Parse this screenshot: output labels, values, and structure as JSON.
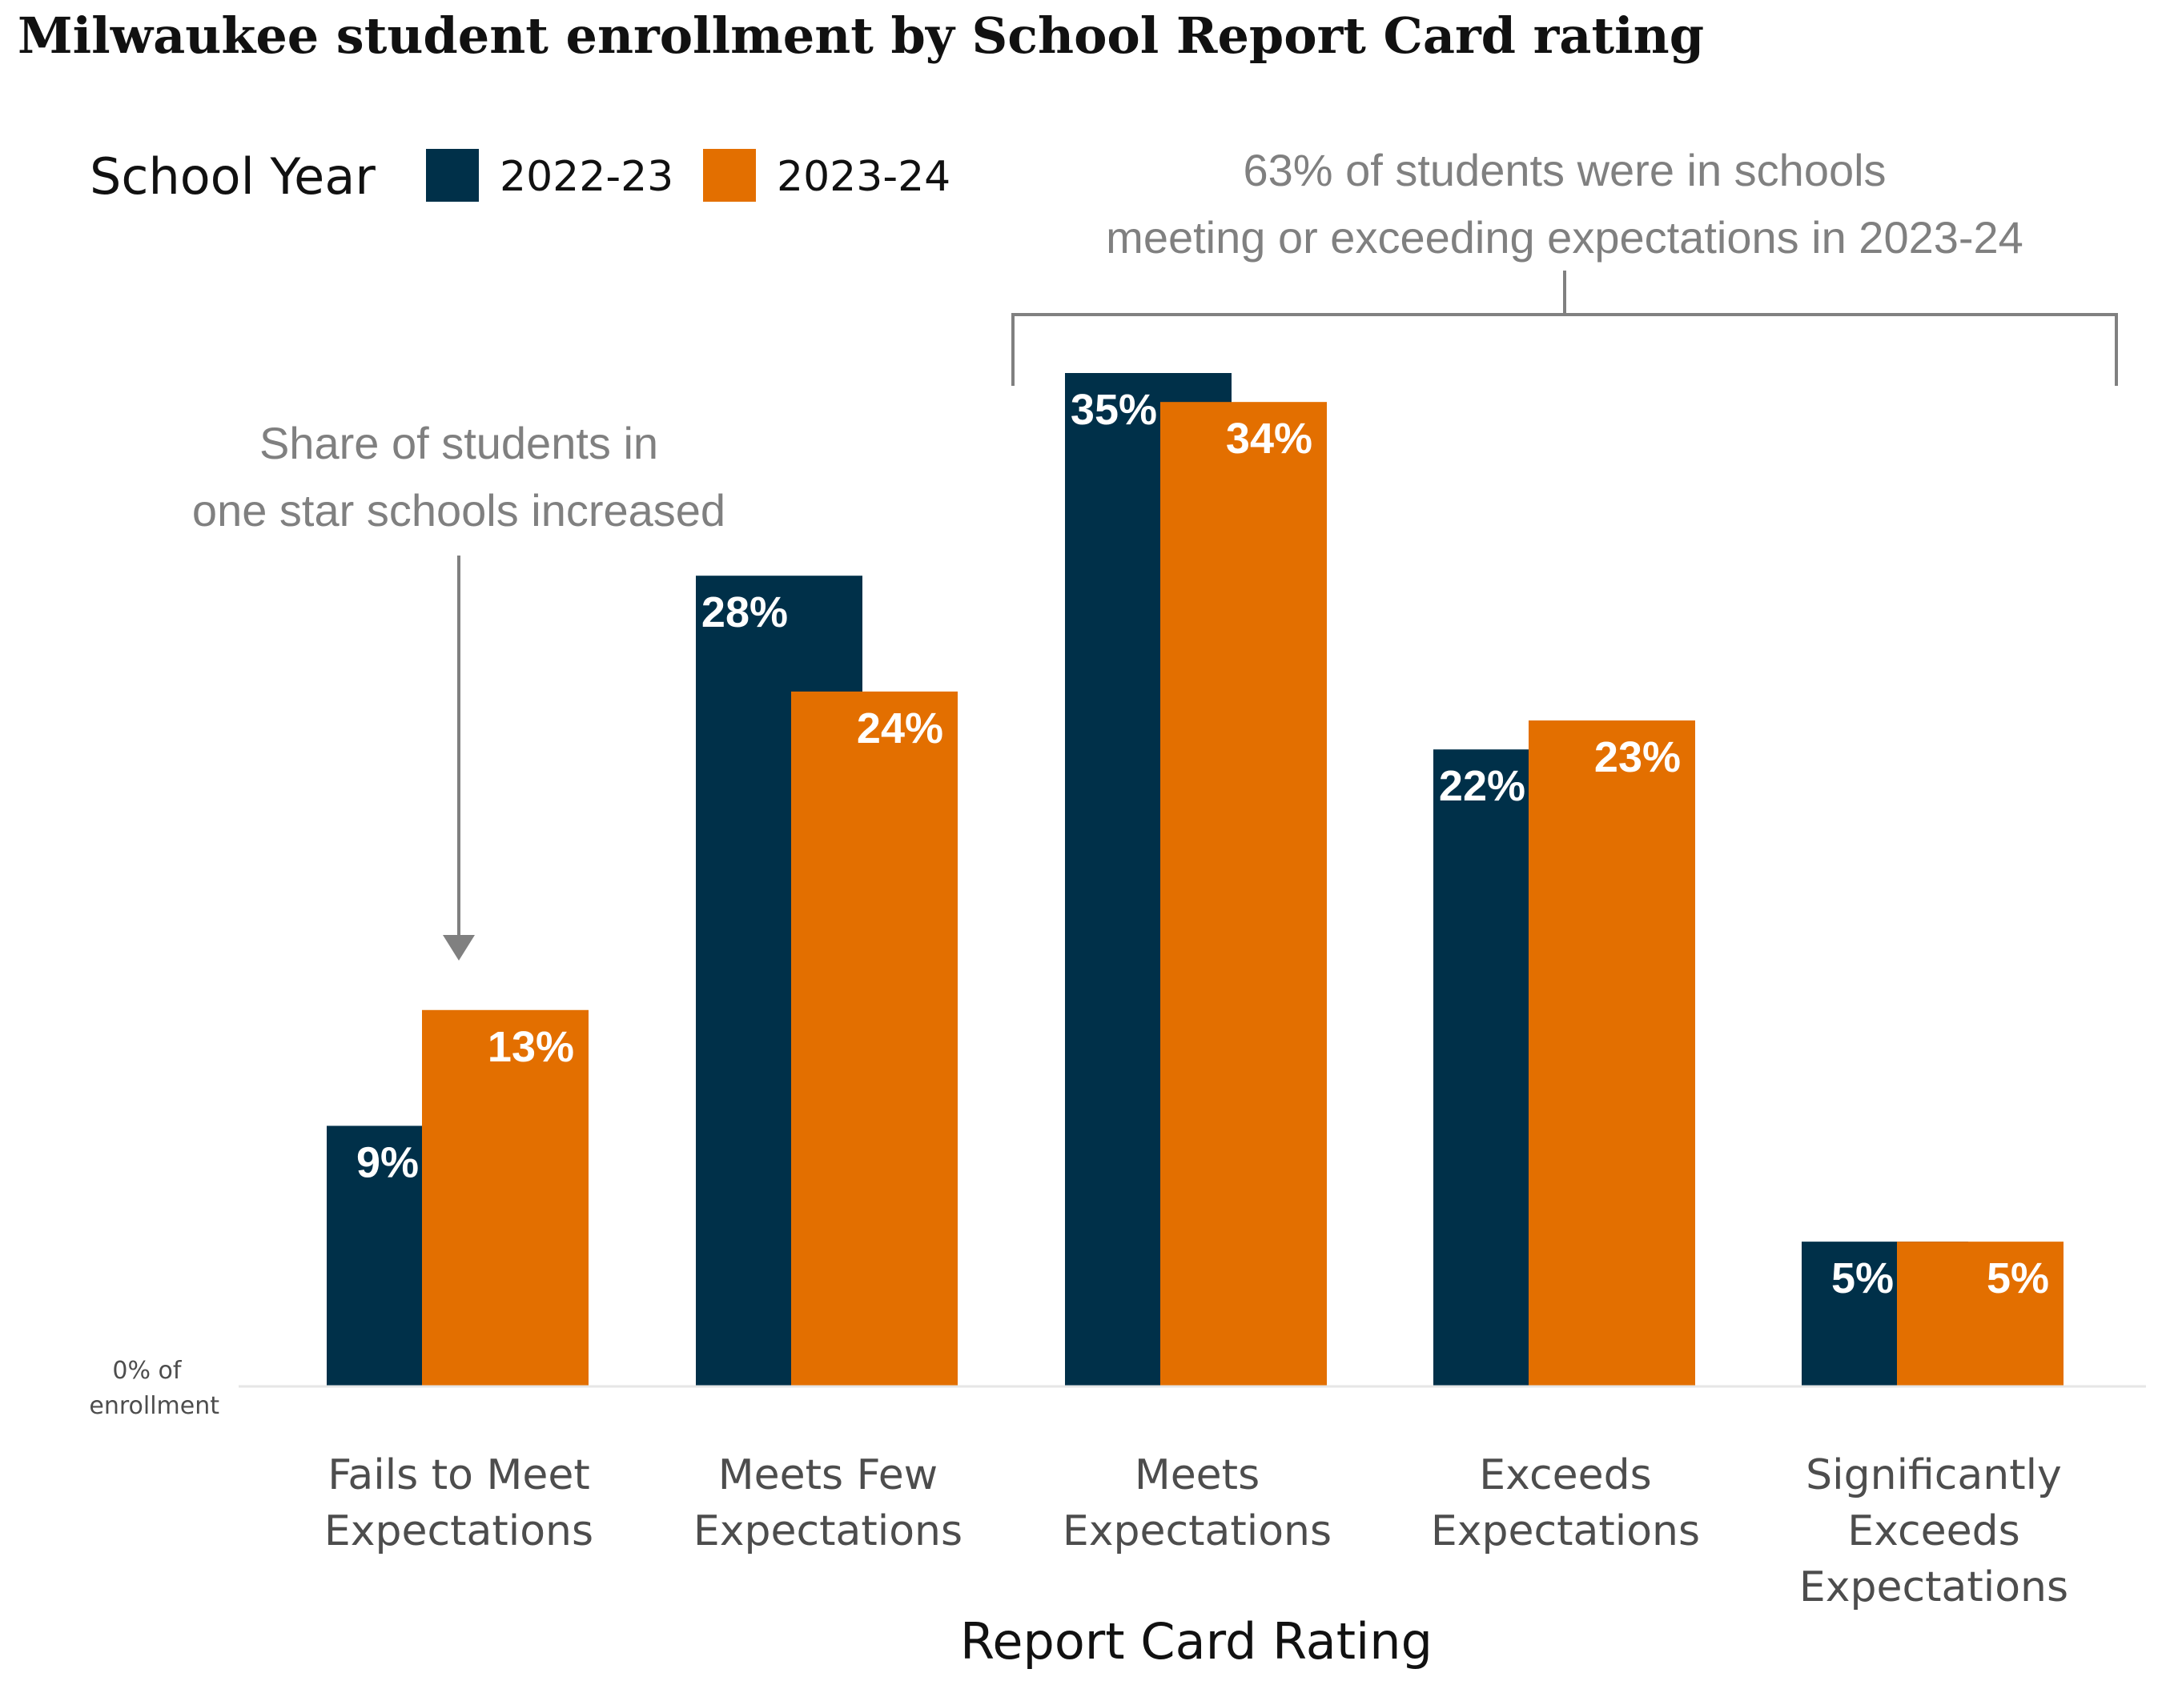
{
  "chart_data": {
    "type": "bar",
    "title": "Milwaukee student enrollment by School Report Card rating",
    "xlabel": "Report Card Rating",
    "ylabel": "",
    "zero_label": [
      "0% of",
      "enrollment"
    ],
    "legend_title": "School Year",
    "legend_placement": "top-left",
    "grid": false,
    "ylim": [
      0,
      35
    ],
    "categories": [
      [
        "Fails to Meet",
        "Expectations"
      ],
      [
        "Meets Few",
        "Expectations"
      ],
      [
        "Meets",
        "Expectations"
      ],
      [
        "Exceeds",
        "Expectations"
      ],
      [
        "Significantly",
        "Exceeds",
        "Expectations"
      ]
    ],
    "series": [
      {
        "name": "2022-23",
        "color": "#003049",
        "values": [
          9,
          28,
          35,
          22,
          5
        ],
        "labels": [
          "9%",
          "28%",
          "35%",
          "22%",
          "5%"
        ]
      },
      {
        "name": "2023-24",
        "color": "#e36f00",
        "values": [
          13,
          24,
          34,
          23,
          5
        ],
        "labels": [
          "13%",
          "24%",
          "34%",
          "23%",
          "5%"
        ]
      }
    ],
    "annotations": [
      {
        "lines": [
          "Share of students in",
          "one star schools increased"
        ],
        "target_category": 0
      },
      {
        "lines": [
          "63% of students were in schools",
          "meeting or exceeding expectations in 2023-24"
        ],
        "bracket_categories": [
          2,
          4
        ]
      }
    ]
  },
  "colors": {
    "annotation": "#808080",
    "baseline": "#e6e6e6"
  }
}
